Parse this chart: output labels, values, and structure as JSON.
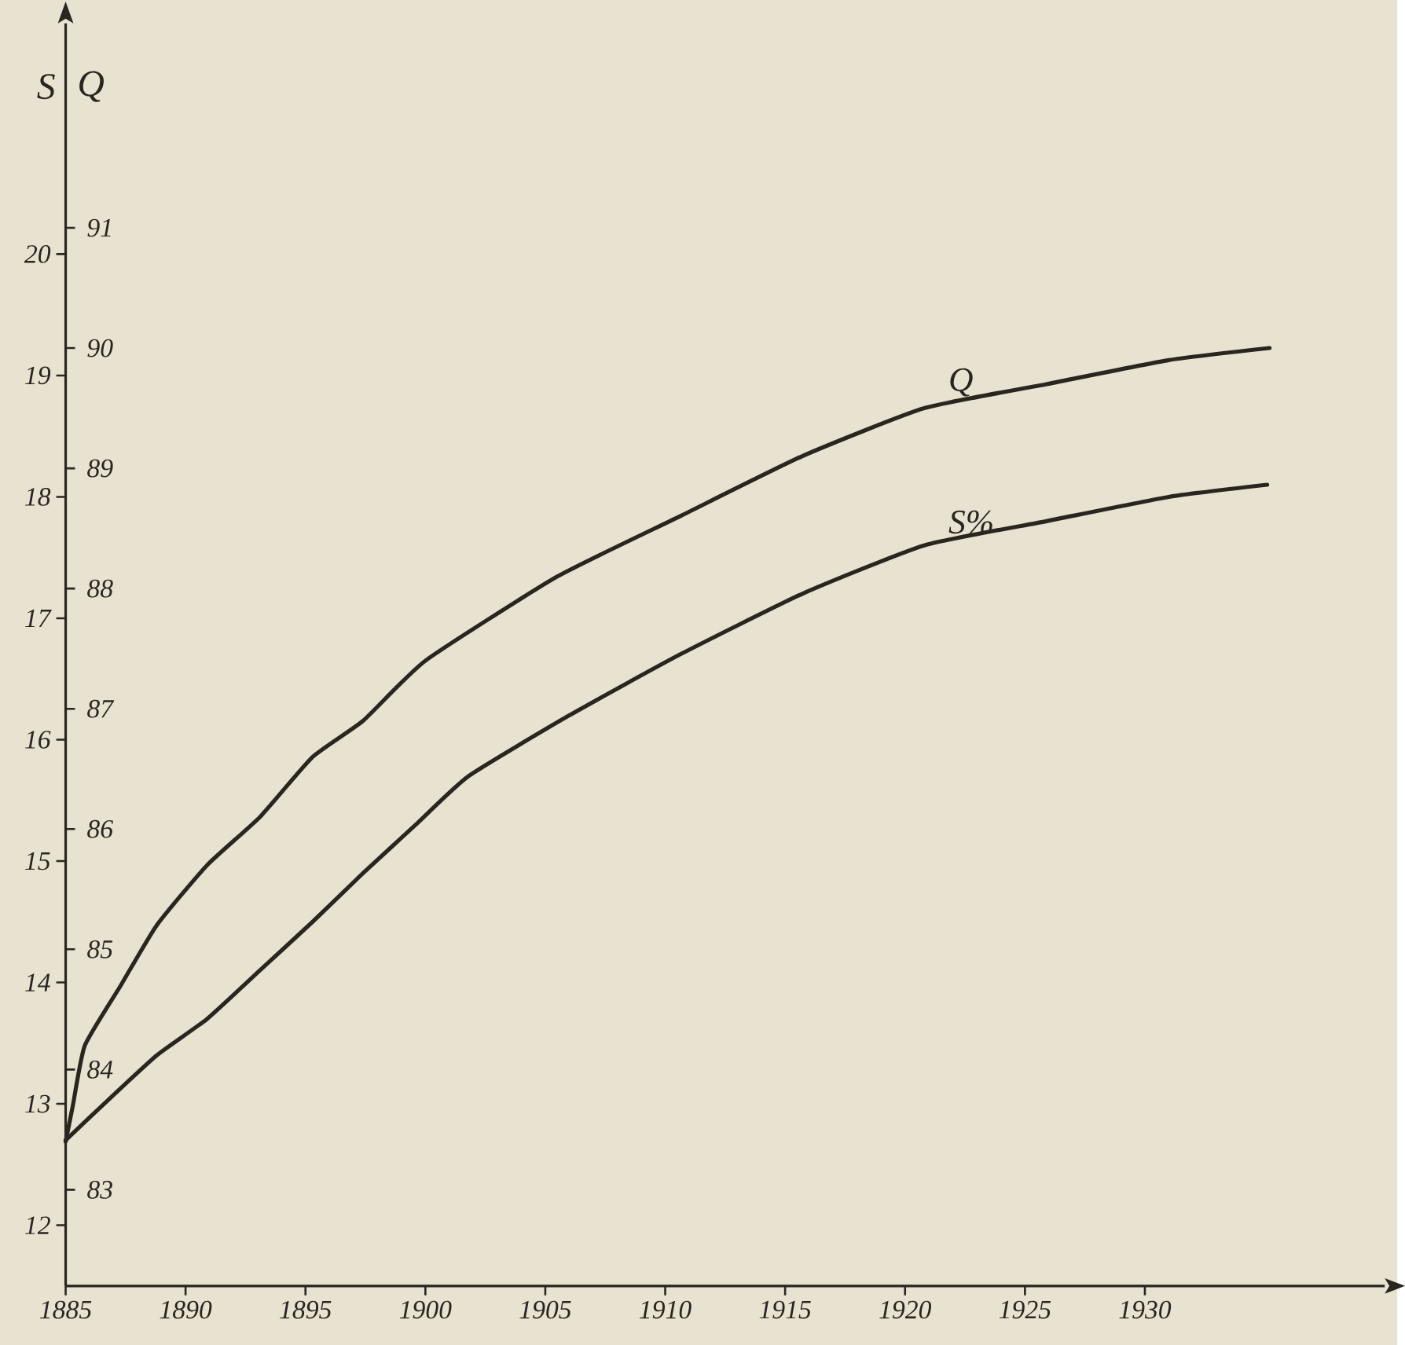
{
  "chart_data": {
    "type": "line",
    "ylabel": "S",
    "y2label": "Q",
    "xlim": [
      1885,
      1940
    ],
    "xticks": [
      1885,
      1890,
      1895,
      1900,
      1905,
      1910,
      1915,
      1920,
      1925,
      1930
    ],
    "ylim": [
      11.5,
      21.9
    ],
    "yticks": [
      12,
      13,
      14,
      15,
      16,
      17,
      18,
      19,
      20
    ],
    "y2lim": [
      82.2,
      92.7
    ],
    "y2ticks": [
      83,
      84,
      85,
      86,
      87,
      88,
      89,
      90,
      91
    ],
    "grid": false,
    "legend": false,
    "marker": "none",
    "line_style": "solid",
    "series": [
      {
        "name": "Q",
        "axis": "y2",
        "color": "#2b2520",
        "x": [
          1885.0,
          1885.3,
          1885.8,
          1887.3,
          1888.8,
          1890.9,
          1893.1,
          1895.3,
          1897.4,
          1900.0,
          1905.5,
          1910.6,
          1915.7,
          1920.8,
          1925.9,
          1931.0,
          1935.2
        ],
        "values": [
          83.4,
          83.7,
          84.2,
          84.7,
          85.2,
          85.7,
          86.1,
          86.6,
          86.9,
          87.4,
          88.1,
          88.6,
          89.1,
          89.5,
          89.7,
          89.9,
          90.0
        ]
      },
      {
        "name": "S%",
        "axis": "y",
        "color": "#2b2520",
        "x": [
          1885.0,
          1886.6,
          1888.8,
          1890.9,
          1893.1,
          1895.3,
          1897.4,
          1899.6,
          1901.8,
          1906.0,
          1910.6,
          1915.7,
          1920.8,
          1925.9,
          1931.0,
          1935.1
        ],
        "values": [
          12.7,
          13.0,
          13.4,
          13.7,
          14.1,
          14.5,
          14.9,
          15.3,
          15.7,
          16.2,
          16.7,
          17.2,
          17.6,
          17.8,
          18.0,
          18.1
        ]
      }
    ]
  }
}
